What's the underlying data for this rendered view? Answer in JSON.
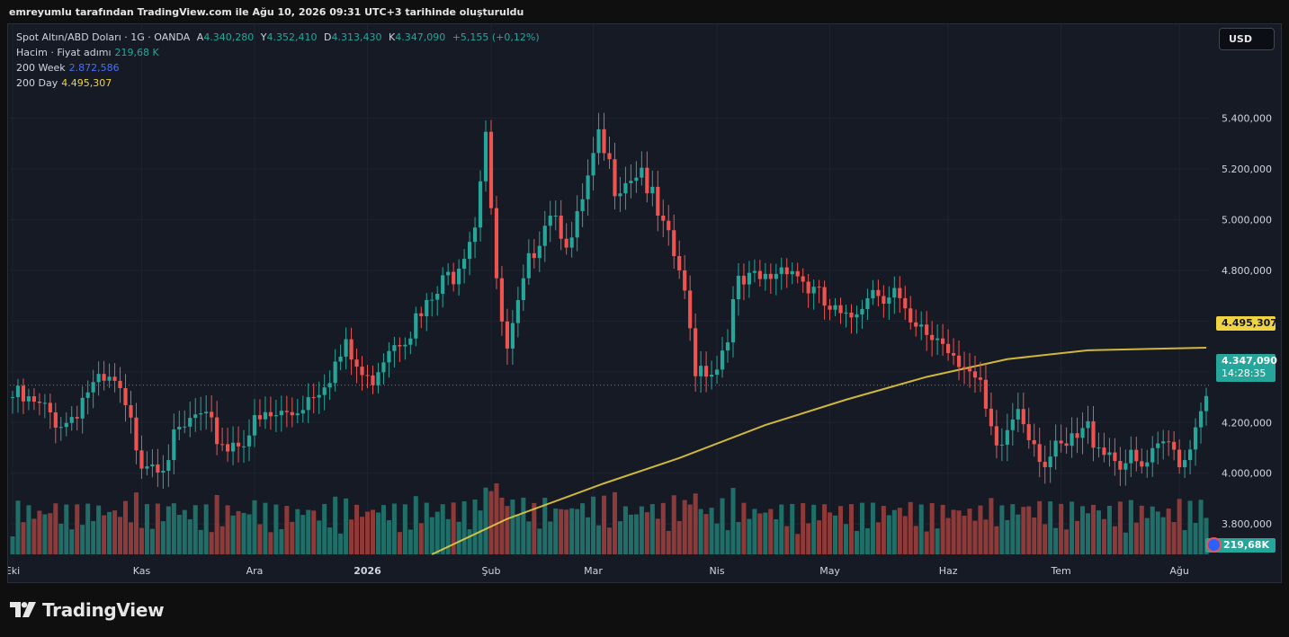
{
  "credit": "emreyumlu tarafından TradingView.com ile Ağu 10, 2026 09:31 UTC+3 tarihinde oluşturuldu",
  "legend": {
    "symbol": "Spot Altın/ABD Doları · 1G · OANDA",
    "open_key": "A",
    "open": "4.340,280",
    "high_key": "Y",
    "high": "4.352,410",
    "low_key": "D",
    "low": "4.313,430",
    "close_key": "K",
    "close": "4.347,090",
    "change": "+5,155 (+0,12%)",
    "volume_label": "Hacim · Fiyat adımı",
    "volume_value": "219,68 K",
    "ma200w_label": "200 Week",
    "ma200w_value": "2.872,586",
    "ma200d_label": "200 Day",
    "ma200d_value": "4.495,307"
  },
  "currency_button": "USD",
  "price_tags": {
    "ma200d": "4.495,307",
    "last_price": "4.347,090",
    "countdown": "14:28:35",
    "volume": "219,68K"
  },
  "brand": "TradingView",
  "colors": {
    "up": "#26a69a",
    "down": "#ef5350",
    "ma200d": "#f0d343",
    "ma200w": "#4c6ef5",
    "background": "#161a25"
  },
  "chart_data": {
    "type": "candlestick",
    "y_axis_side": "right",
    "ylim": [
      3680000,
      5700000
    ],
    "y_ticks": [
      {
        "value": 3800000,
        "label": "3.800,000"
      },
      {
        "value": 4000000,
        "label": "4.000,000"
      },
      {
        "value": 4200000,
        "label": "4.200,000"
      },
      {
        "value": 4400000,
        "label": "4.400,000"
      },
      {
        "value": 4600000,
        "label": "4.600,000"
      },
      {
        "value": 4800000,
        "label": "4.800,000"
      },
      {
        "value": 5000000,
        "label": "5.000,000"
      },
      {
        "value": 5200000,
        "label": "5.200,000"
      },
      {
        "value": 5400000,
        "label": "5.400,000"
      }
    ],
    "x_ticks": [
      {
        "index": 0,
        "label": "Eki"
      },
      {
        "index": 24,
        "label": "Kas"
      },
      {
        "index": 45,
        "label": "Ara"
      },
      {
        "index": 66,
        "label": "2026",
        "bold": true
      },
      {
        "index": 89,
        "label": "Şub"
      },
      {
        "index": 108,
        "label": "Mar"
      },
      {
        "index": 131,
        "label": "Nis"
      },
      {
        "index": 152,
        "label": "May"
      },
      {
        "index": 174,
        "label": "Haz"
      },
      {
        "index": 195,
        "label": "Tem"
      },
      {
        "index": 217,
        "label": "Ağu"
      }
    ],
    "candles_compact": "4300000,4370000,4250000,4340000,2|4340000,4395000,4275000,4305000,2|4305000,4389000,4294000,4376000,2|4376000,4463000,4352000,4445000,2|4445000,4467000,4386000,4427000,1|4427000,4537000,4386000,4500000,2|4500000,4566000,4456000,4557000,1|4557000,4604000,4527000,4530000,2|4530000,4590000,4517000,4554000,1|4554000,4581000,4500000,4557000,1|4557000,4637000,4536000,4617000,1|4617000,4733000,4612000,4699000,2|4699000,4796000,4686000,4756000,1|4756000,4843000,4717000,4830000,2|4830000,4901000,4804000,4869000,1|4869000,4991000,4847000,4968000,2|4968000,4984000,4892000,4962000,2|4962000,5070000,4934000,5034000,2|5034000,5111000,5025000,5102000,1|5102000,5126000,5003000,5056000,1|5056000,5115000,5020000,5074000,1|5074000,5115000,5043000,5059000,2|5059000,5110000,5008000,5084000,2|5084000,5100000,4968000,5000000,1|5000000,5061000,4938000,5037000,1|5037000,5055000,4958000,4967000,1|4967000,4997000,4936000,4975000,2|4975000,5056000,4939000,5038000,1|5038000,5079000,5011000,5069000,2|5069000,5108000,5040000,5089000,1|5089000,5112000,5043000,5060000,2|5060000,5092000,5026000,5048000,1|5048000,5081000,5030000,5063000,1|5063000,5096000,5024000,5075000,1|5075000,5105000,5005000,5010000,1|5010000,5022000,4967000,4989000,1|4989000,5025000,4960000,5007000,2|5007000,5051000,4991000,5027000,2|5027000,5071000,4992000,5066000,1|5066000,5101000,5053000,5074000,1|5074000,5121000,5045000,5105000,1|5105000,5151000,5099000,5112000,2|5112000,5144000,5085000,5134000,1|5134000,5174000,5119000,5160000,2|5160000,5216000,5149000,5196000,1|5196000,5214000,5154000,5160000,1|5160000,5242000,5127000,5211000,1|5211000,5258000,5173000,5231000,2|5231000,5283000,5209000,5263000,1|5263000,5294000,5224000,5244000,2|5244000,5283000,5213000,5266000,1|5266000,5277000,5215000,5241000,2|5241000,5289000,5212000,5266000,2|5266000,5318000,5249000,5311000,1|5311000,5367000,5293000,5338000,1|5338000,5408000,5310000,5385000,2|5385000,5451000,5374000,5431000,2|5431000,5469000,5424000,5455000,2|5455000,5506000,5422000,5472000,2|5472000,5531000,5443000,5518000,1|5518000,5572000,5465000,5545000,1|5545000,5585000,5484000,5502000,2|5502000,5532000,5467000,5481000,2|5481000,5515000,5452000,5493000,1|5493000,5530000,5456000,5508000,2|5508000,5533000,5460000,5510000,2|5510000,5558000,5452000,5514000,1|5514000,5538000,5490000,5529000,1|5529000,5557000,5491000,5524000,2|5524000,5559000,5510000,5545000,2|5545000,5585000,5537000,5575000,2|5575000,5624000,5560000,5610000,1|5610000,5645000,5591000,5639000,2|5639000,5690000,5618000,5664000,1|5664000,5696000,5620000,5648000,1|5648000,5678000,5610000,5643000,1|5643000,5684000,5627000,5679000,1|5679000,5719000,5653000,5711000,2|5711000,5778000,5680000,5750000,2|5750000,5845000,5739000,5826000,1|5826000,5900000,5812000,5887000,2|5887000,5972000,5875000,5952000,2|5952000,6049000,5909000,6035000,1|6035000,6103000,5998000,6072000,2|6072000,6133000,6032000,6098000,1|6098000,6137000,6066000,6083000,2|6083000,6136000,6048000,6113000,1|6113000,6192000,6064000,6178000,2|6178000,6251000,6163000,6223000,2|6223000,6284000,6193000,6258000,1|6258000,6320000,6222000,6293000,1|6293000,6406000,6239000,6374000,2|6374000,6436000,6348000,6418000,2",
    "candle_note": "",
    "volume_ylim": [
      0,
      10
    ],
    "ma200d": {
      "name": "200 Day",
      "last": 4495307
    }
  }
}
